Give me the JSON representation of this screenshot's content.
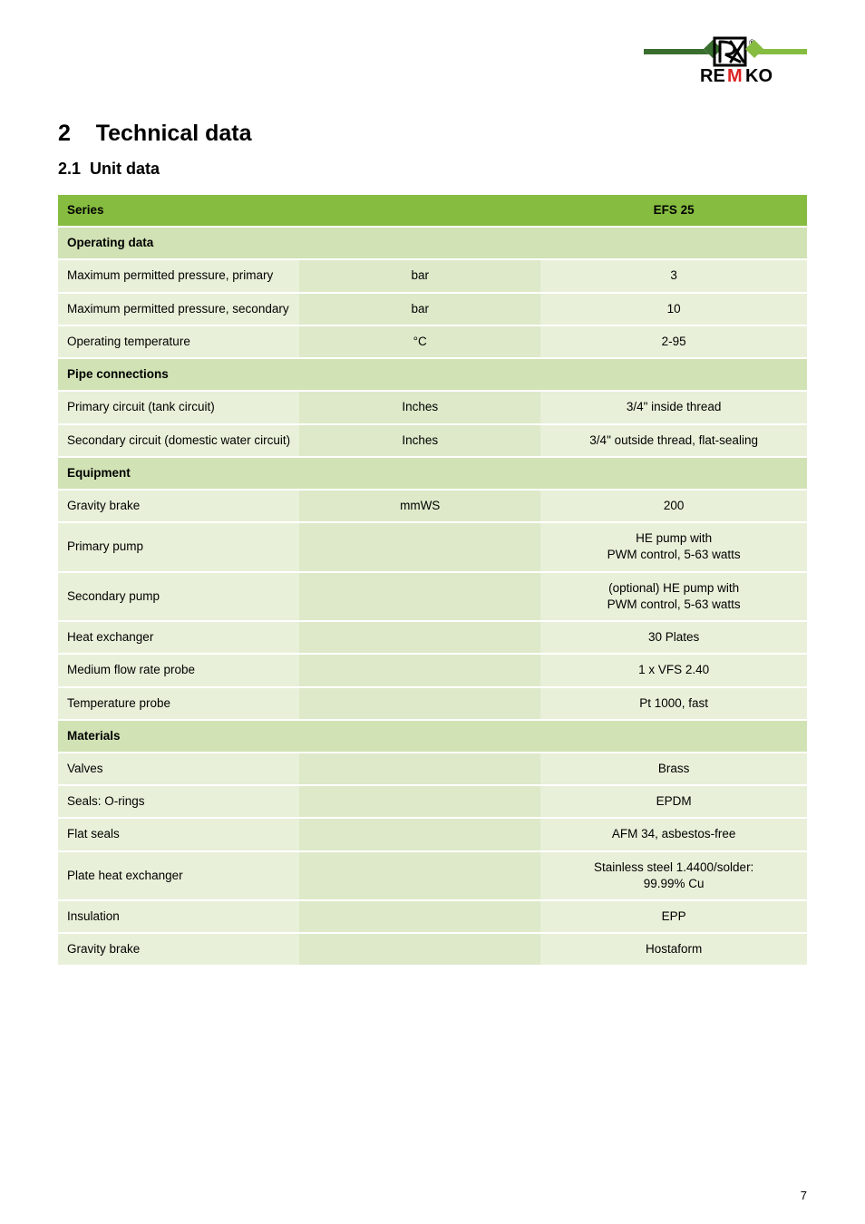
{
  "logo": {
    "brand": "REMKO"
  },
  "heading": {
    "number": "2",
    "title": "Technical data"
  },
  "subheading": {
    "number": "2.1",
    "title": "Unit data"
  },
  "table": {
    "header": {
      "series_label": "Series",
      "product": "EFS 25"
    },
    "sections": [
      {
        "title": "Operating data",
        "rows": [
          {
            "label": "Maximum permitted pressure, primary",
            "unit": "bar",
            "value": "3"
          },
          {
            "label": "Maximum permitted pressure, secondary",
            "unit": "bar",
            "value": "10"
          },
          {
            "label": "Operating temperature",
            "unit": "°C",
            "value": "2-95"
          }
        ]
      },
      {
        "title": "Pipe connections",
        "rows": [
          {
            "label": "Primary circuit (tank circuit)",
            "unit": "Inches",
            "value": "3/4\" inside thread"
          },
          {
            "label": "Secondary circuit (domestic water circuit)",
            "unit": "Inches",
            "value": "3/4\" outside thread, flat-sealing"
          }
        ]
      },
      {
        "title": "Equipment",
        "rows": [
          {
            "label": "Gravity brake",
            "unit": "mmWS",
            "value": "200"
          },
          {
            "label": "Primary pump",
            "unit": "",
            "value": "HE pump with\nPWM control, 5-63 watts"
          },
          {
            "label": "Secondary pump",
            "unit": "",
            "value": "(optional) HE pump with\nPWM control, 5-63 watts"
          },
          {
            "label": "Heat exchanger",
            "unit": "",
            "value": "30 Plates"
          },
          {
            "label": "Medium flow rate probe",
            "unit": "",
            "value": "1 x VFS 2.40"
          },
          {
            "label": "Temperature probe",
            "unit": "",
            "value": "Pt 1000, fast"
          }
        ]
      },
      {
        "title": "Materials",
        "rows": [
          {
            "label": "Valves",
            "unit": "",
            "value": "Brass"
          },
          {
            "label": "Seals: O-rings",
            "unit": "",
            "value": "EPDM"
          },
          {
            "label": "Flat seals",
            "unit": "",
            "value": "AFM 34, asbestos-free"
          },
          {
            "label": "Plate heat exchanger",
            "unit": "",
            "value": "Stainless steel 1.4400/solder:\n99.99% Cu"
          },
          {
            "label": "Insulation",
            "unit": "",
            "value": "EPP"
          },
          {
            "label": "Gravity brake",
            "unit": "",
            "value": "Hostaform"
          }
        ]
      }
    ]
  },
  "page_number": "7",
  "colors": {
    "header_bg": "#86bc40",
    "section_bg": "#d1e2b5",
    "row_label_bg": "#e8f0d9",
    "row_unit_bg": "#dde9c9",
    "row_val_bg": "#e8f0d9"
  }
}
